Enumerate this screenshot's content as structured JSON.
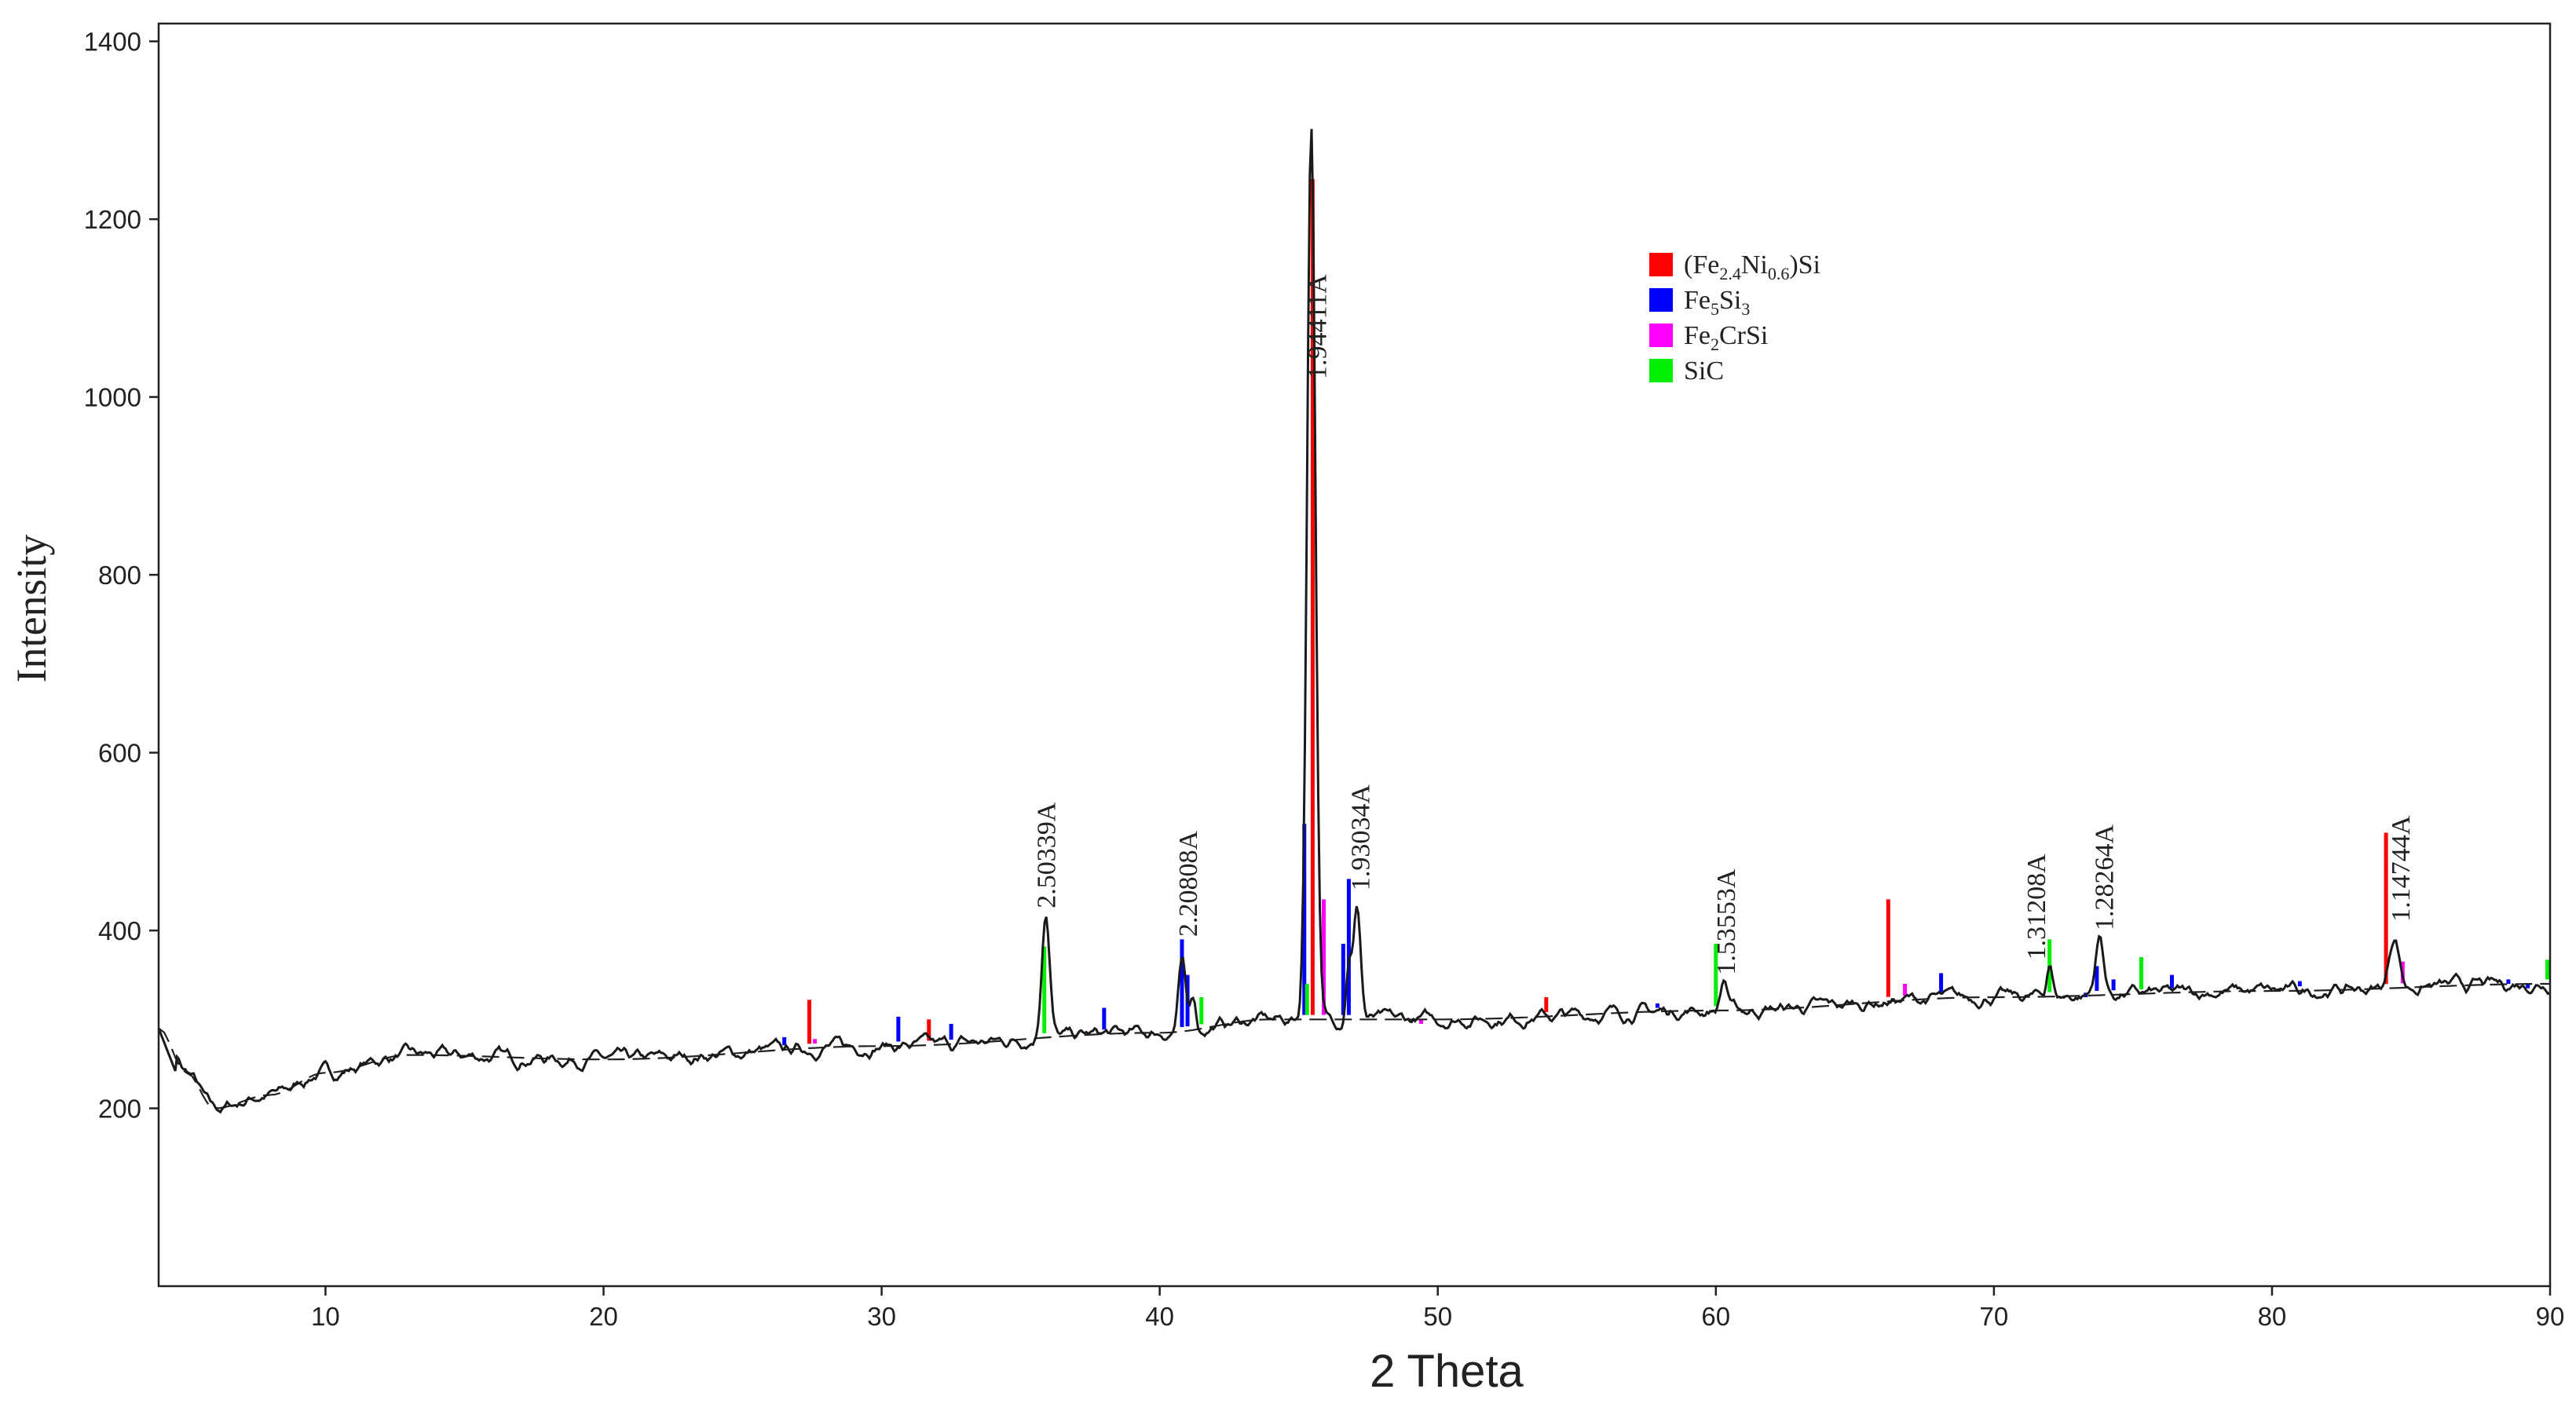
{
  "chart_data": {
    "type": "line",
    "xlabel": "2 Theta",
    "ylabel": "Intensity",
    "xlim": [
      4,
      90
    ],
    "ylim": [
      0,
      1420
    ],
    "x_ticks": [
      10,
      20,
      30,
      40,
      50,
      60,
      70,
      80,
      90
    ],
    "y_ticks": [
      200,
      400,
      600,
      800,
      1000,
      1200,
      1400
    ],
    "grid": false,
    "legend_position": "top-right",
    "legend": [
      {
        "label": "(Fe2.4Ni0.6)Si",
        "base": "(Fe",
        "sub1": "2.4",
        "mid": "Ni",
        "sub2": "0.6",
        "tail": ")Si",
        "color": "#ff0000"
      },
      {
        "label": "Fe5Si3",
        "base": "Fe",
        "sub1": "5",
        "mid": "Si",
        "sub2": "3",
        "tail": "",
        "color": "#0000ff"
      },
      {
        "label": "Fe2CrSi",
        "base": "Fe",
        "sub1": "2",
        "mid": "CrSi",
        "sub2": "",
        "tail": "",
        "color": "#ff00ff"
      },
      {
        "label": "SiC",
        "base": "SiC",
        "sub1": "",
        "mid": "",
        "sub2": "",
        "tail": "",
        "color": "#00ee00"
      }
    ],
    "pattern_peaks": [
      {
        "x": 4,
        "y": 290,
        "w": 1.5
      },
      {
        "x": 35.9,
        "y": 145,
        "w": 0.28
      },
      {
        "x": 40.8,
        "y": 75,
        "w": 0.25
      },
      {
        "x": 41.2,
        "y": 40,
        "w": 0.2
      },
      {
        "x": 45.45,
        "y": 1010,
        "w": 0.3
      },
      {
        "x": 46.8,
        "y": 65,
        "w": 0.2
      },
      {
        "x": 47.1,
        "y": 125,
        "w": 0.26
      },
      {
        "x": 60.3,
        "y": 35,
        "w": 0.25
      },
      {
        "x": 72.0,
        "y": 40,
        "w": 0.2
      },
      {
        "x": 73.8,
        "y": 65,
        "w": 0.3
      },
      {
        "x": 84.4,
        "y": 60,
        "w": 0.35
      }
    ],
    "background_points": [
      [
        4,
        290
      ],
      [
        5,
        240
      ],
      [
        6,
        200
      ],
      [
        8,
        215
      ],
      [
        10,
        240
      ],
      [
        13,
        260
      ],
      [
        20,
        255
      ],
      [
        30,
        270
      ],
      [
        40,
        285
      ],
      [
        44,
        300
      ],
      [
        50,
        300
      ],
      [
        60,
        310
      ],
      [
        70,
        325
      ],
      [
        80,
        332
      ],
      [
        90,
        340
      ]
    ],
    "reference_lines": {
      "(Fe2.4Ni0.6)Si": [
        [
          27.4,
          322
        ],
        [
          31.7,
          300
        ],
        [
          45.5,
          1245
        ],
        [
          53.9,
          325
        ],
        [
          66.2,
          435
        ],
        [
          84.1,
          510
        ]
      ],
      "Fe5Si3": [
        [
          26.5,
          280
        ],
        [
          30.6,
          303
        ],
        [
          32.5,
          295
        ],
        [
          38.0,
          313
        ],
        [
          40.8,
          390
        ],
        [
          41.0,
          350
        ],
        [
          45.2,
          520
        ],
        [
          46.6,
          385
        ],
        [
          46.8,
          458
        ],
        [
          57.9,
          318
        ],
        [
          68.1,
          352
        ],
        [
          73.3,
          330
        ],
        [
          73.7,
          360
        ],
        [
          74.3,
          345
        ],
        [
          76.4,
          350
        ],
        [
          81.0,
          343
        ],
        [
          88.5,
          345
        ],
        [
          89.2,
          340
        ]
      ],
      "Fe2CrSi": [
        [
          27.6,
          278
        ],
        [
          45.9,
          435
        ],
        [
          49.4,
          300
        ],
        [
          66.8,
          340
        ],
        [
          84.7,
          365
        ]
      ],
      "SiC": [
        [
          35.85,
          382
        ],
        [
          41.5,
          325
        ],
        [
          45.3,
          340
        ],
        [
          60.0,
          385
        ],
        [
          72.0,
          390
        ],
        [
          75.3,
          370
        ],
        [
          89.9,
          367
        ]
      ]
    },
    "annotations": [
      {
        "text": "2.50339A",
        "x": 35.9,
        "y": 425
      },
      {
        "text": "2.20808A",
        "x": 41.0,
        "y": 393
      },
      {
        "text": "1.94411A",
        "x": 45.65,
        "y": 1020
      },
      {
        "text": "1.93034A",
        "x": 47.2,
        "y": 445
      },
      {
        "text": "1.53553A",
        "x": 60.35,
        "y": 350
      },
      {
        "text": "1.31208A",
        "x": 71.5,
        "y": 367
      },
      {
        "text": "1.28264A",
        "x": 73.95,
        "y": 400
      },
      {
        "text": "1.14744A",
        "x": 84.6,
        "y": 410
      }
    ]
  }
}
